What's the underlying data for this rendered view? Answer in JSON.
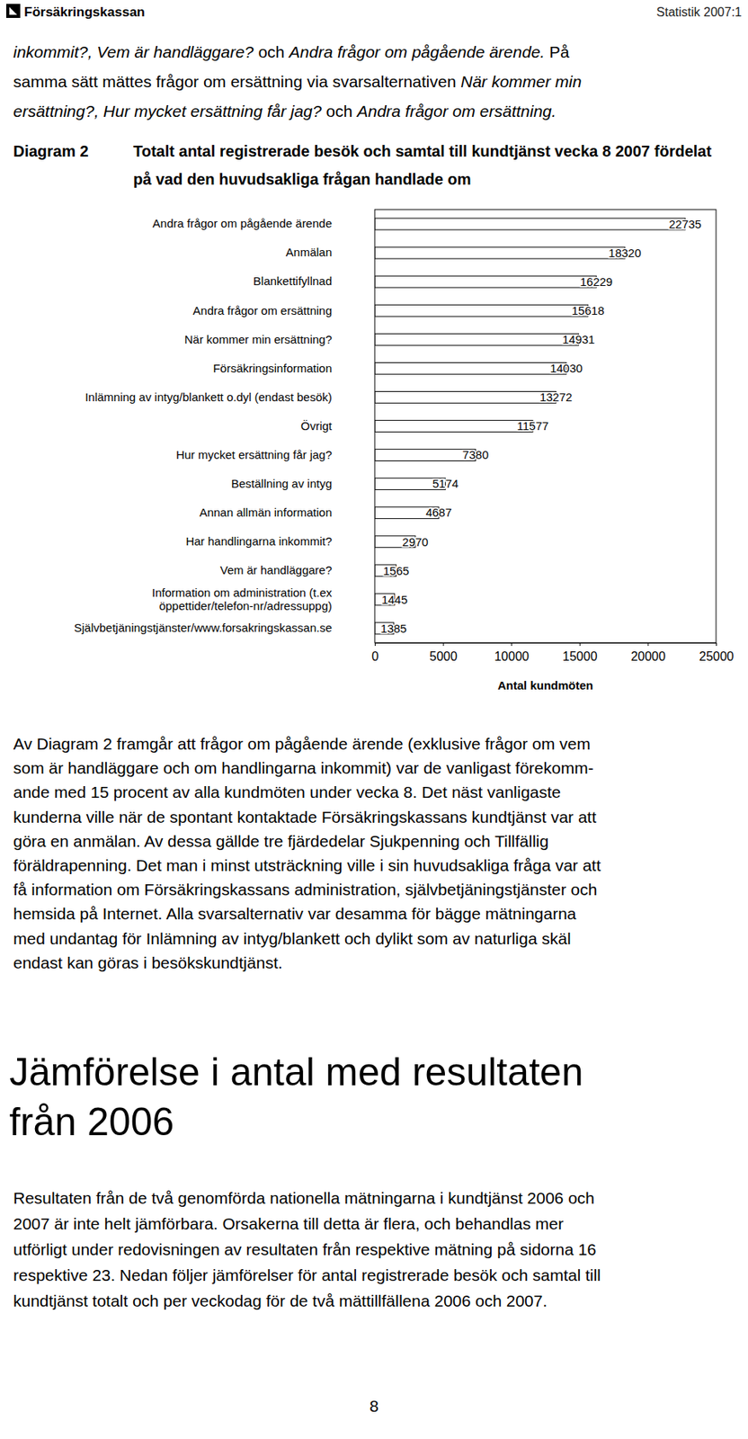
{
  "header": {
    "brand": "Försäkringskassan",
    "series": "Statistik 2007:1"
  },
  "intro": [
    [
      {
        "text": "inkommit?, Vem är handläggare?",
        "italic": true
      },
      {
        "text": " och ",
        "italic": false
      },
      {
        "text": "Andra frågor om pågående ärende.",
        "italic": true
      },
      {
        "text": " På",
        "italic": false
      }
    ],
    [
      {
        "text": "samma sätt mättes frågor om ersättning via svarsalternativen ",
        "italic": false
      },
      {
        "text": "När kommer min",
        "italic": true
      }
    ],
    [
      {
        "text": "ersättning?, Hur mycket ersättning får jag?",
        "italic": true
      },
      {
        "text": " och ",
        "italic": false
      },
      {
        "text": "Andra frågor om ersättning.",
        "italic": true
      }
    ]
  ],
  "chart_data": {
    "type": "bar",
    "orientation": "horizontal",
    "figure_label": "Diagram 2",
    "title": "Totalt antal registrerade besök och samtal till kundtjänst vecka 8 2007 fördelat på vad den huvudsakliga frågan handlade om",
    "xlabel": "Antal kundmöten",
    "categories": [
      "Andra frågor om pågående ärende",
      "Anmälan",
      "Blankettifyllnad",
      "Andra frågor om ersättning",
      "När kommer min ersättning?",
      "Försäkringsinformation",
      "Inlämning av intyg/blankett o.dyl (endast besök)",
      "Övrigt",
      "Hur mycket ersättning får jag?",
      "Beställning av intyg",
      "Annan allmän information",
      "Har handlingarna inkommit?",
      "Vem är handläggare?",
      "Information om administration (t.ex öppettider/telefon-nr/adressuppg)",
      "Självbetjäningstjänster/www.forsakringskassan.se"
    ],
    "values": [
      22735,
      18320,
      16229,
      15618,
      14931,
      14030,
      13272,
      11577,
      7380,
      5174,
      4687,
      2970,
      1565,
      1445,
      1385
    ],
    "color": "#ffffff",
    "xlim": [
      0,
      25000
    ],
    "xticks": [
      0,
      5000,
      10000,
      15000,
      20000,
      25000
    ],
    "grid": false,
    "data_labels": true
  },
  "body": [
    "Av Diagram 2 framgår att frågor om pågående ärende (exklusive frågor om vem",
    "som är handläggare och om handlingarna inkommit) var de vanligast förekomm-",
    "ande med 15 procent av alla kundmöten under vecka 8. Det näst vanligaste",
    "kunderna ville när de spontant kontaktade Försäkringskassans kundtjänst var att",
    "göra en anmälan. Av dessa gällde tre fjärdedelar Sjukpenning och Tillfällig",
    "föräldrapenning. Det man i minst utsträckning ville i sin huvudsakliga fråga var att",
    "få information om Försäkringskassans administration, självbetjäningstjänster och",
    "hemsida på Internet. Alla svarsalternativ var desamma för bägge mätningarna",
    "med undantag för Inlämning av intyg/blankett och dylikt som av naturliga skäl",
    "endast kan göras i besökskundtjänst."
  ],
  "heading": [
    "Jämförelse i antal med resultaten",
    "från 2006"
  ],
  "body2": [
    "Resultaten från de två genomförda nationella mätningarna i kundtjänst 2006 och",
    "2007 är inte helt jämförbara. Orsakerna till detta är flera, och behandlas mer",
    "utförligt under redovisningen av resultaten från respektive mätning på sidorna 16",
    "respektive 23. Nedan följer jämförelser för antal registrerade besök och samtal till",
    "kundtjänst totalt och per veckodag för de två mättillfällena 2006 och 2007."
  ],
  "page_number": "8"
}
